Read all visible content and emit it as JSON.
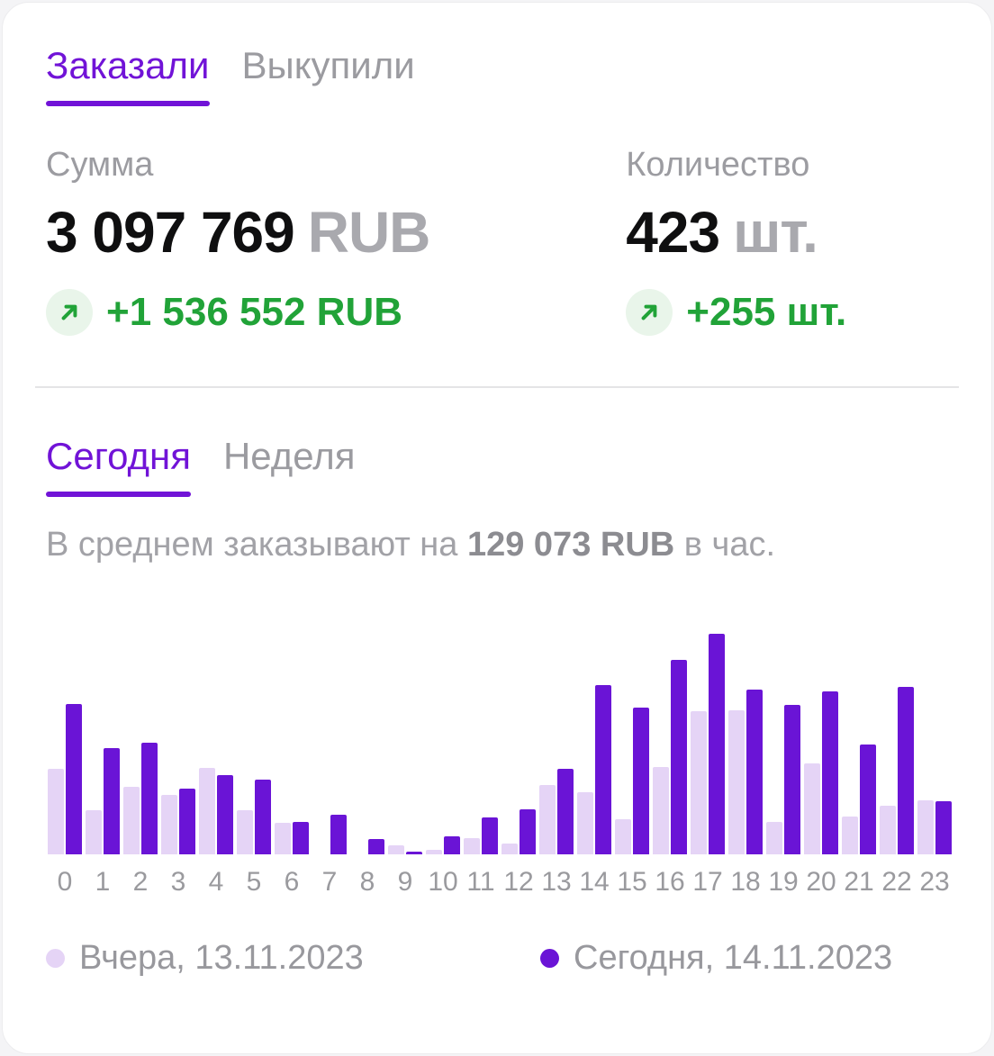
{
  "metric_tabs": {
    "ordered": "Заказали",
    "purchased": "Выкупили"
  },
  "stats": {
    "sum": {
      "label": "Сумма",
      "value": "3 097 769",
      "unit": "RUB",
      "delta": "+1 536 552 RUB"
    },
    "quantity": {
      "label": "Количество",
      "value": "423",
      "unit": "шт.",
      "delta": "+255 шт."
    }
  },
  "period_tabs": {
    "today": "Сегодня",
    "week": "Неделя"
  },
  "subtitle": {
    "prefix": "В среднем заказывают на ",
    "strong": "129 073 RUB",
    "suffix": " в час."
  },
  "chart_data": {
    "type": "bar",
    "title": "",
    "xlabel": "",
    "ylabel": "",
    "note": "No y-axis shown in source; values are relative bar heights (rendered px), grid off, legend below chart",
    "x": [
      0,
      1,
      2,
      3,
      4,
      5,
      6,
      7,
      8,
      9,
      10,
      11,
      12,
      13,
      14,
      15,
      16,
      17,
      18,
      19,
      20,
      21,
      22,
      23
    ],
    "ylim": [
      0,
      280
    ],
    "series": [
      {
        "name": "Вчера, 13.11.2023",
        "color": "#e5d4f6",
        "values": [
          95,
          49,
          75,
          66,
          96,
          49,
          35,
          0,
          0,
          10,
          5,
          18,
          12,
          77,
          69,
          39,
          97,
          159,
          160,
          36,
          101,
          42,
          54,
          60
        ]
      },
      {
        "name": "Сегодня, 14.11.2023",
        "color": "#6a14d6",
        "values": [
          167,
          118,
          124,
          73,
          88,
          83,
          36,
          44,
          17,
          3,
          20,
          41,
          50,
          95,
          188,
          163,
          216,
          245,
          183,
          166,
          181,
          122,
          186,
          59
        ]
      }
    ]
  },
  "legend": [
    {
      "label": "Вчера, 13.11.2023",
      "color": "#e5d4f6"
    },
    {
      "label": "Сегодня, 14.11.2023",
      "color": "#6a14d6"
    }
  ],
  "colors": {
    "accent_purple": "#7113d7",
    "bar_today": "#6a14d6",
    "bar_yesterday": "#e5d4f6",
    "positive_green": "#21a338",
    "positive_green_bg": "#e9f5ea",
    "text_primary": "#0f0f10",
    "text_secondary": "#9c9ca1"
  }
}
